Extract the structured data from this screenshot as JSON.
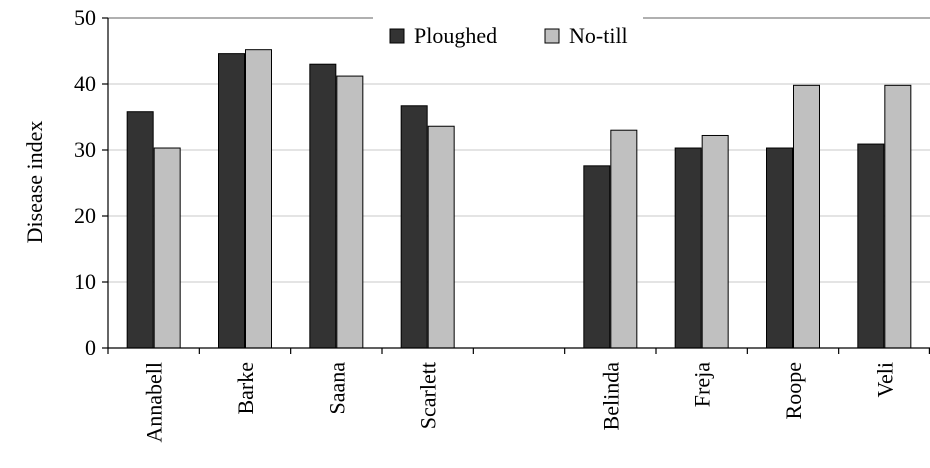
{
  "chart_data": {
    "type": "bar",
    "ylabel": "Disease index",
    "xlabel": "",
    "ylim": [
      0,
      50
    ],
    "yticks": [
      0,
      10,
      20,
      30,
      40,
      50
    ],
    "grid": true,
    "legend_position": "top-center",
    "categories": [
      "Annabell",
      "Barke",
      "Saana",
      "Scarlett",
      "",
      "Belinda",
      "Freja",
      "Roope",
      "Veli"
    ],
    "series": [
      {
        "name": "Ploughed",
        "color": "#333333",
        "values": [
          35.8,
          44.6,
          43.0,
          36.7,
          null,
          27.6,
          30.3,
          30.3,
          30.9
        ]
      },
      {
        "name": "No-till",
        "color": "#c0c0c0",
        "values": [
          30.3,
          45.2,
          41.2,
          33.6,
          null,
          33.0,
          32.2,
          39.8,
          39.8
        ]
      }
    ]
  }
}
